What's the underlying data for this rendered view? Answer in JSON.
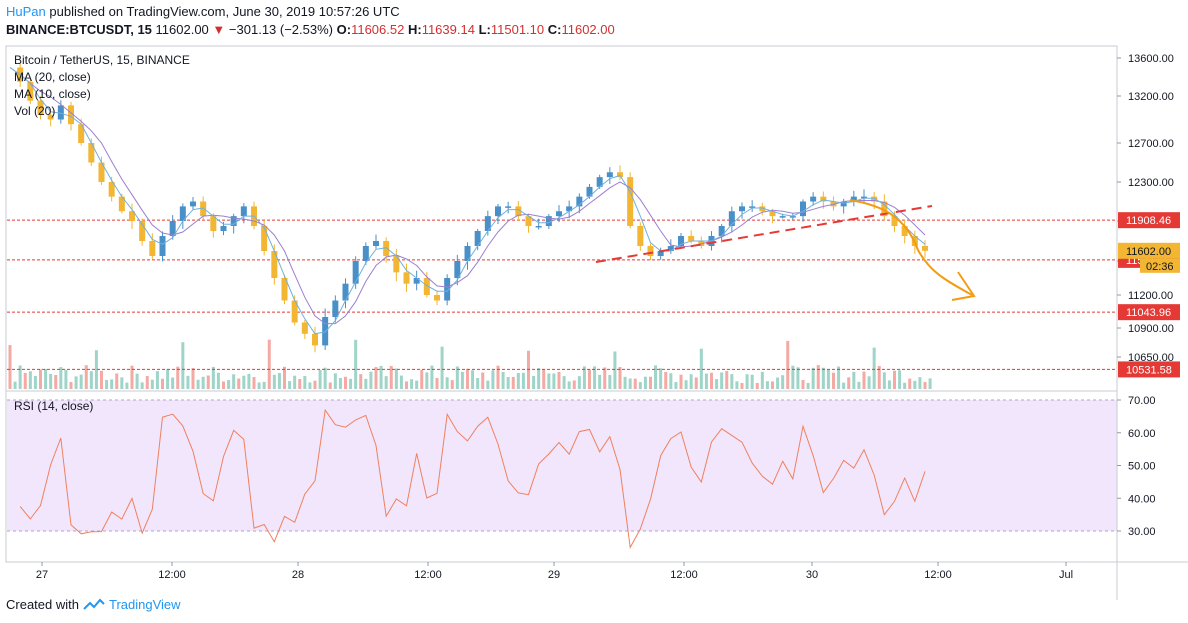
{
  "header": {
    "publisher": "HuPan",
    "published_text": "published on TradingView.com, June 30, 2019 10:57:26 UTC",
    "symbol": "BINANCE:BTCUSDT, 15",
    "last": "11602.00",
    "change": "−301.13 (−2.53%)",
    "o_label": "O:",
    "o_value": "11606.52",
    "h_label": "H:",
    "h_value": "11639.14",
    "l_label": "L:",
    "l_value": "11501.10",
    "c_label": "C:",
    "c_value": "11602.00"
  },
  "legend": {
    "title": "Bitcoin / TetherUS, 15, BINANCE",
    "ma20": "MA (20, close)",
    "ma10": "MA (10, close)",
    "vol": "Vol (20)"
  },
  "rsi": {
    "title": "RSI (14, close)",
    "ticks": [
      "70.00",
      "60.00",
      "50.00",
      "40.00",
      "30.00"
    ],
    "levels": [
      70,
      60,
      50,
      40,
      30
    ]
  },
  "footer": {
    "created_with": "Created with",
    "tradingview": "TradingView"
  },
  "colors": {
    "up": "#4a90c8",
    "down": "#f2b632",
    "ma20": "#9c7fd0",
    "ma10": "#6fb0e0",
    "resistance": "#e53935",
    "rsi_line": "#f08060",
    "rsi_band": "#f1e6fb",
    "arrow": "#f39c12"
  },
  "chart_data": {
    "type": "line",
    "x_labels": [
      "27",
      "12:00",
      "28",
      "12:00",
      "29",
      "12:00",
      "30",
      "12:00",
      "Jul"
    ],
    "price_axis": [
      "13600.00",
      "13200.00",
      "12700.00",
      "12300.00",
      "11900.00",
      "11500.00",
      "11200.00",
      "10900.00",
      "10650.00"
    ],
    "price_range": [
      10450,
      13700
    ],
    "horizontal_levels": [
      {
        "label": "11908.46",
        "value": 11908.46
      },
      {
        "label": "11511.16",
        "value": 11511.16
      },
      {
        "label": "11043.96",
        "value": 11043.96
      },
      {
        "label": "10531.58",
        "value": 10531.58
      }
    ],
    "last_price_label": "11602.00",
    "countdown": "02:36",
    "close_series": [
      13500,
      13350,
      13150,
      13000,
      12950,
      13100,
      12900,
      12700,
      12500,
      12300,
      12150,
      12000,
      11900,
      11700,
      11550,
      11750,
      11900,
      12050,
      12100,
      11950,
      11800,
      11850,
      11950,
      12050,
      11850,
      11600,
      11350,
      11150,
      10950,
      10850,
      10750,
      11000,
      11150,
      11300,
      11500,
      11650,
      11700,
      11550,
      11400,
      11300,
      11350,
      11200,
      11150,
      11350,
      11500,
      11650,
      11800,
      11950,
      12050,
      12050,
      11950,
      11850,
      11850,
      11950,
      12000,
      12050,
      12150,
      12250,
      12350,
      12400,
      12350,
      11850,
      11650,
      11550,
      11600,
      11650,
      11750,
      11700,
      11650,
      11750,
      11850,
      12000,
      12050,
      12050,
      12000,
      11950,
      11950,
      11950,
      12100,
      12150,
      12100,
      12050,
      12100,
      12150,
      12150,
      12100,
      11950,
      11850,
      11750,
      11650,
      11602
    ]
  }
}
